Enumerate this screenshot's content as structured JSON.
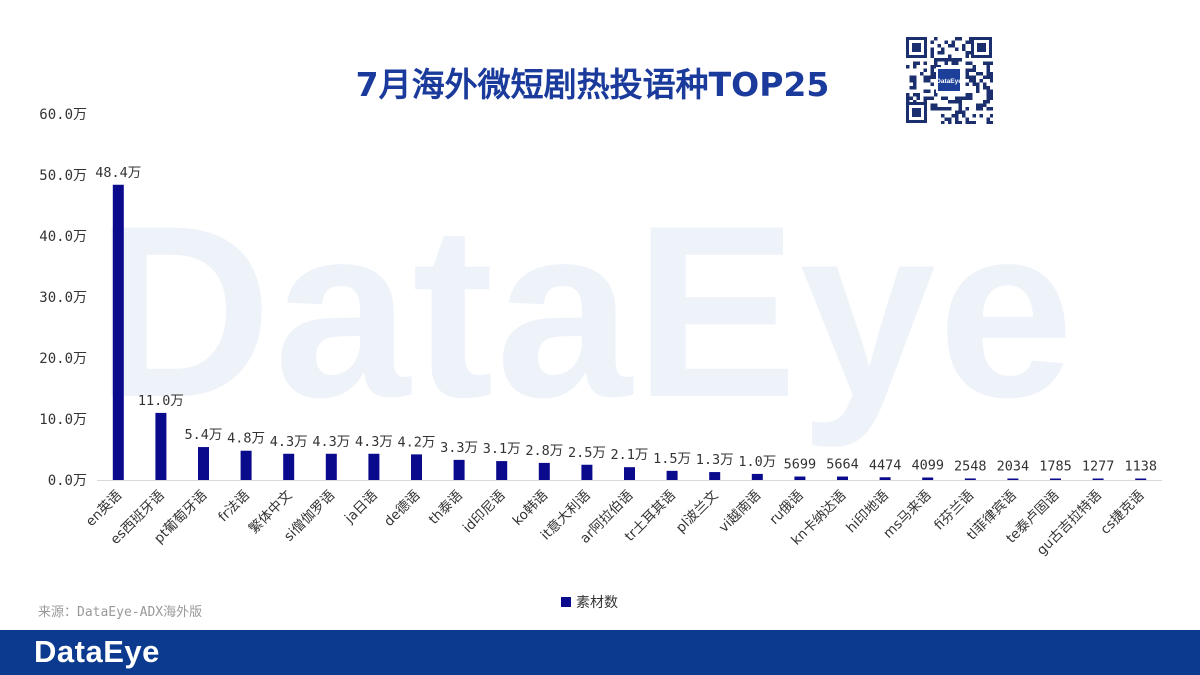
{
  "brand": {
    "watermark": "DataEye",
    "footer_logo": "DataEye",
    "qr_logo": "DataEye",
    "primary_color": "#0c3a8f",
    "bar_color": "#0a0a8c"
  },
  "source_note": "来源：DataEye-ADX海外版",
  "chart_data": {
    "type": "bar",
    "title": "7月海外微短剧热投语种TOP25",
    "xlabel": "",
    "ylabel": "",
    "ylim": [
      0,
      600000
    ],
    "y_ticks": [
      {
        "value": 0,
        "label": "0.0万"
      },
      {
        "value": 100000,
        "label": "10.0万"
      },
      {
        "value": 200000,
        "label": "20.0万"
      },
      {
        "value": 300000,
        "label": "30.0万"
      },
      {
        "value": 400000,
        "label": "40.0万"
      },
      {
        "value": 500000,
        "label": "50.0万"
      },
      {
        "value": 600000,
        "label": "60.0万"
      }
    ],
    "grid": false,
    "legend_position": "bottom",
    "categories": [
      "en英语",
      "es西班牙语",
      "pt葡萄牙语",
      "fr法语",
      "繁体中文",
      "si僧伽罗语",
      "ja日语",
      "de德语",
      "th泰语",
      "id印尼语",
      "ko韩语",
      "it意大利语",
      "ar阿拉伯语",
      "tr土耳其语",
      "pl波兰文",
      "vi越南语",
      "ru俄语",
      "kn卡纳达语",
      "hi印地语",
      "ms马来语",
      "fi芬兰语",
      "tl菲律宾语",
      "te泰卢固语",
      "gu古吉拉特语",
      "cs捷克语"
    ],
    "series": [
      {
        "name": "素材数",
        "values": [
          484000,
          110000,
          54000,
          48000,
          43000,
          43000,
          43000,
          42000,
          33000,
          31000,
          28000,
          25000,
          21000,
          15000,
          13000,
          10000,
          5699,
          5664,
          4474,
          4099,
          2548,
          2034,
          1785,
          1277,
          1138
        ],
        "labels": [
          "48.4万",
          "11.0万",
          "5.4万",
          "4.8万",
          "4.3万",
          "4.3万",
          "4.3万",
          "4.2万",
          "3.3万",
          "3.1万",
          "2.8万",
          "2.5万",
          "2.1万",
          "1.5万",
          "1.3万",
          "1.0万",
          "5699",
          "5664",
          "4474",
          "4099",
          "2548",
          "2034",
          "1785",
          "1277",
          "1138"
        ]
      }
    ]
  }
}
